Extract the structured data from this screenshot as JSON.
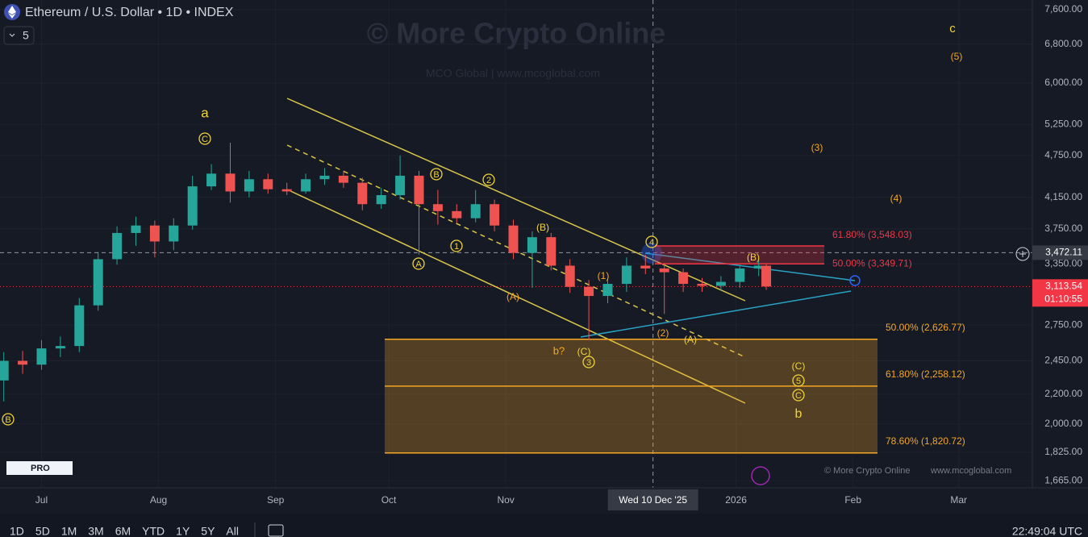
{
  "header": {
    "symbol": "Ethereum / U.S. Dollar • 1D • INDEX",
    "interval_count": "5"
  },
  "watermark": {
    "title": "© More Crypto Online",
    "subtitle": "MCO Global  |  www.mcoglobal.com"
  },
  "footer_credit": {
    "name": "© More Crypto Online",
    "site": "www.mcoglobal.com"
  },
  "logo": "PRO",
  "toolbar": {
    "ranges": [
      "1D",
      "5D",
      "1M",
      "3M",
      "6M",
      "YTD",
      "1Y",
      "5Y",
      "All"
    ],
    "clock": "22:49:04 UTC"
  },
  "chart_data": {
    "type": "candlestick",
    "log_scale": true,
    "x": [
      0,
      5,
      10,
      15,
      20,
      25,
      30,
      35,
      40,
      45,
      50,
      55,
      60,
      65,
      70,
      75,
      80,
      85,
      90,
      95,
      100,
      105,
      110,
      115,
      120,
      125,
      130,
      135,
      140,
      145,
      150,
      155,
      160,
      165,
      170,
      175,
      180,
      185,
      190,
      195,
      200,
      202
    ],
    "open": [
      2300,
      2450,
      2420,
      2550,
      2570,
      2930,
      3400,
      3700,
      3790,
      3600,
      3790,
      4300,
      4480,
      4230,
      4400,
      4260,
      4230,
      4400,
      4450,
      4350,
      4060,
      4180,
      4450,
      4060,
      3970,
      3880,
      4060,
      3790,
      3470,
      3650,
      3330,
      3110,
      3020,
      3140,
      3330,
      3300,
      3260,
      3140,
      3120,
      3160,
      3300,
      3330
    ],
    "high": [
      2520,
      2530,
      2620,
      2650,
      3000,
      3480,
      3780,
      3900,
      3850,
      3880,
      4450,
      4620,
      4950,
      4520,
      4480,
      4350,
      4480,
      4560,
      4520,
      4420,
      4280,
      4750,
      4520,
      4250,
      4060,
      4250,
      4120,
      3860,
      3720,
      3700,
      3400,
      3180,
      3200,
      3420,
      3450,
      3360,
      3300,
      3200,
      3220,
      3340,
      3400,
      3350
    ],
    "low": [
      2150,
      2350,
      2380,
      2480,
      2520,
      2880,
      3340,
      3550,
      3420,
      3500,
      3740,
      4250,
      4080,
      4150,
      4200,
      4180,
      4200,
      4320,
      4280,
      3980,
      4000,
      4120,
      3450,
      3800,
      3820,
      3830,
      3720,
      3400,
      3100,
      3280,
      3050,
      2620,
      2950,
      3060,
      3240,
      2850,
      3060,
      3060,
      3070,
      3100,
      3220,
      3080
    ],
    "close": [
      2450,
      2420,
      2550,
      2570,
      2930,
      3400,
      3700,
      3790,
      3600,
      3790,
      4300,
      4480,
      4230,
      4400,
      4260,
      4230,
      4400,
      4450,
      4350,
      4060,
      4180,
      4450,
      4060,
      3970,
      3880,
      4060,
      3790,
      3470,
      3650,
      3330,
      3110,
      3020,
      3140,
      3330,
      3300,
      3260,
      3140,
      3120,
      3160,
      3300,
      3330,
      3113.54
    ],
    "up_color": "#26a69a",
    "down_color": "#ef5350",
    "xlim": [
      -1,
      272.5
    ],
    "xticks": [
      {
        "value": 10,
        "label": "Jul"
      },
      {
        "value": 41,
        "label": "Aug"
      },
      {
        "value": 72,
        "label": "Sep"
      },
      {
        "value": 102,
        "label": "Oct"
      },
      {
        "value": 133,
        "label": "Nov"
      },
      {
        "value": 194,
        "label": "2026"
      },
      {
        "value": 225,
        "label": "Feb"
      },
      {
        "value": 253,
        "label": "Mar"
      }
    ],
    "ylim": [
      1627,
      7841
    ],
    "yticks": [
      {
        "value": 7600,
        "label": "7,600.00"
      },
      {
        "value": 6800,
        "label": "6,800.00"
      },
      {
        "value": 6000,
        "label": "6,000.00"
      },
      {
        "value": 5250,
        "label": "5,250.00"
      },
      {
        "value": 4750,
        "label": "4,750.00"
      },
      {
        "value": 4150,
        "label": "4,150.00"
      },
      {
        "value": 3750,
        "label": "3,750.00"
      },
      {
        "value": 3350,
        "label": "3,350.00"
      },
      {
        "value": 2750,
        "label": "2,750.00"
      },
      {
        "value": 2450,
        "label": "2,450.00"
      },
      {
        "value": 2200,
        "label": "2,200.00"
      },
      {
        "value": 2000,
        "label": "2,000.00"
      },
      {
        "value": 1825,
        "label": "1,825.00"
      },
      {
        "value": 1665,
        "label": "1,665.00"
      }
    ],
    "crosshair": {
      "x": {
        "value": 172,
        "label": "Wed 10 Dec '25"
      },
      "y": {
        "value": 3472.11,
        "label": "3,472.11"
      }
    },
    "last_price": {
      "value": 3113.54,
      "label": "3,113.54",
      "countdown": "01:10:55"
    },
    "fib_levels": [
      {
        "value": 3548.03,
        "label": "61.80% (3,548.03)",
        "color": "#f23645"
      },
      {
        "value": 3349.71,
        "label": "50.00% (3,349.71)",
        "color": "#f23645"
      },
      {
        "value": 2626.77,
        "label": "50.00% (2,626.77)",
        "color": "#f5a623"
      },
      {
        "value": 2258.12,
        "label": "61.80% (2,258.12)",
        "color": "#f5a623"
      },
      {
        "value": 1820.72,
        "label": "78.60% (1,820.72)",
        "color": "#f5a623"
      }
    ],
    "wave_labels": [
      "a",
      "C",
      "B",
      "B",
      "2",
      "1",
      "A",
      "(B)",
      "(A)",
      "(1)",
      "4",
      "(B)",
      "(2)",
      "(A)",
      "b?",
      "(C)",
      "3",
      "(C)",
      "5",
      "C",
      "b",
      "c",
      "(5)",
      "(3)",
      "(4)"
    ]
  }
}
